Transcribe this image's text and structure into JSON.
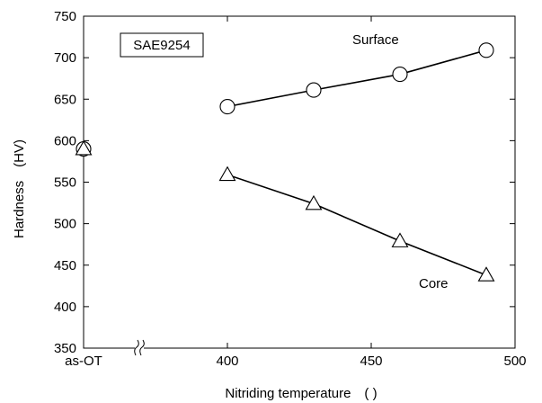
{
  "chart_data": {
    "type": "line",
    "xlabel": "Nitriding temperature　( )",
    "ylabel": "Hardness　(HV)",
    "xlim": [
      350,
      500
    ],
    "ylim": [
      350,
      750
    ],
    "x_ticks": [
      {
        "label": "as-OT",
        "value": 350
      },
      {
        "label": "400",
        "value": 400
      },
      {
        "label": "450",
        "value": 450
      },
      {
        "label": "500",
        "value": 500
      }
    ],
    "y_ticks": [
      350,
      400,
      450,
      500,
      550,
      600,
      650,
      700,
      750
    ],
    "axis_break": true,
    "grid": false,
    "annotation_box": "SAE9254",
    "series": [
      {
        "name": "Surface",
        "marker": "circle",
        "baseline": {
          "x": "as-OT",
          "y": 590
        },
        "x": [
          400,
          430,
          460,
          490
        ],
        "y": [
          641,
          661,
          680,
          709
        ]
      },
      {
        "name": "Core",
        "marker": "triangle",
        "baseline": {
          "x": "as-OT",
          "y": 590
        },
        "x": [
          400,
          430,
          460,
          490
        ],
        "y": [
          559,
          524,
          479,
          438
        ]
      }
    ]
  }
}
